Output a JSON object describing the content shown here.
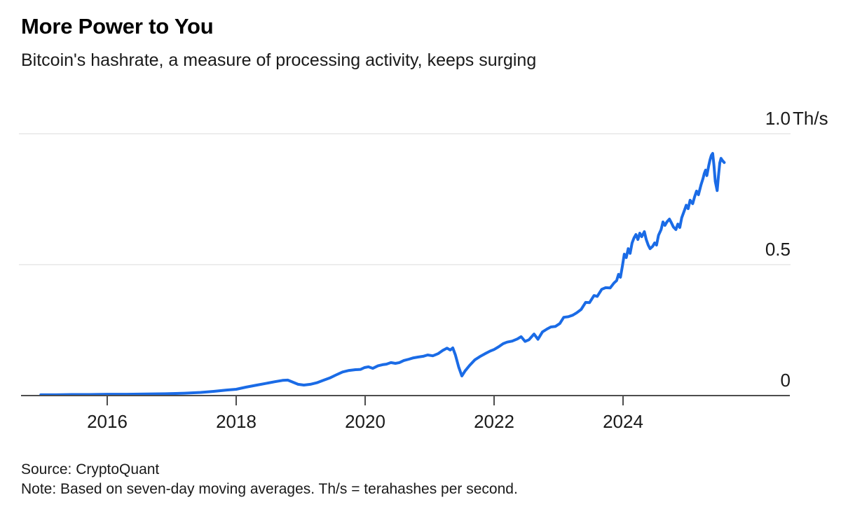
{
  "header": {
    "title": "More Power to You",
    "subtitle": "Bitcoin's hashrate, a measure of processing activity, keeps surging"
  },
  "footer": {
    "source": "Source: CryptoQuant",
    "note": "Note: Based on seven-day moving averages. Th/s = terahashes per second."
  },
  "colors": {
    "line": "#1a6be6",
    "grid": "#ededed",
    "axis": "#4d4d4d",
    "tick_text": "#1a1a1a",
    "background": "#ffffff"
  },
  "chart_data": {
    "type": "line",
    "title": "More Power to You",
    "subtitle": "Bitcoin's hashrate, a measure of processing activity, keeps surging",
    "series_name": "Bitcoin hashrate, seven-day moving average",
    "unit": "Th/s",
    "xlabel": "",
    "ylabel": "Th/s",
    "xlim": [
      2014.66,
      2026.6
    ],
    "ylim": [
      0,
      1.0
    ],
    "grid": "horizontal",
    "legend": "none",
    "ytick_side": "right",
    "xticks": [
      2016,
      2018,
      2020,
      2022,
      2024
    ],
    "yticks": [
      {
        "value": 0,
        "label": "0",
        "suffix": ""
      },
      {
        "value": 0.5,
        "label": "0.5",
        "suffix": ""
      },
      {
        "value": 1.0,
        "label": "1.0",
        "suffix": "Th/s"
      }
    ],
    "points": [
      [
        2014.97,
        0.003
      ],
      [
        2015.2,
        0.003
      ],
      [
        2015.45,
        0.004
      ],
      [
        2015.7,
        0.004
      ],
      [
        2016.0,
        0.005
      ],
      [
        2016.3,
        0.005
      ],
      [
        2016.6,
        0.006
      ],
      [
        2016.9,
        0.007
      ],
      [
        2017.2,
        0.009
      ],
      [
        2017.45,
        0.012
      ],
      [
        2017.65,
        0.016
      ],
      [
        2017.85,
        0.021
      ],
      [
        2018.0,
        0.024
      ],
      [
        2018.15,
        0.032
      ],
      [
        2018.3,
        0.039
      ],
      [
        2018.45,
        0.046
      ],
      [
        2018.6,
        0.053
      ],
      [
        2018.72,
        0.058
      ],
      [
        2018.8,
        0.059
      ],
      [
        2018.88,
        0.051
      ],
      [
        2018.96,
        0.043
      ],
      [
        2019.05,
        0.04
      ],
      [
        2019.15,
        0.043
      ],
      [
        2019.25,
        0.049
      ],
      [
        2019.35,
        0.058
      ],
      [
        2019.45,
        0.067
      ],
      [
        2019.55,
        0.079
      ],
      [
        2019.65,
        0.09
      ],
      [
        2019.75,
        0.096
      ],
      [
        2019.85,
        0.099
      ],
      [
        2019.93,
        0.1
      ],
      [
        2019.99,
        0.107
      ],
      [
        2020.05,
        0.11
      ],
      [
        2020.12,
        0.104
      ],
      [
        2020.2,
        0.114
      ],
      [
        2020.27,
        0.118
      ],
      [
        2020.33,
        0.12
      ],
      [
        2020.4,
        0.126
      ],
      [
        2020.47,
        0.123
      ],
      [
        2020.53,
        0.126
      ],
      [
        2020.6,
        0.134
      ],
      [
        2020.68,
        0.139
      ],
      [
        2020.75,
        0.144
      ],
      [
        2020.82,
        0.147
      ],
      [
        2020.9,
        0.15
      ],
      [
        2020.97,
        0.155
      ],
      [
        2021.05,
        0.152
      ],
      [
        2021.13,
        0.16
      ],
      [
        2021.2,
        0.172
      ],
      [
        2021.27,
        0.181
      ],
      [
        2021.32,
        0.174
      ],
      [
        2021.36,
        0.182
      ],
      [
        2021.4,
        0.155
      ],
      [
        2021.45,
        0.11
      ],
      [
        2021.5,
        0.075
      ],
      [
        2021.55,
        0.094
      ],
      [
        2021.62,
        0.115
      ],
      [
        2021.7,
        0.136
      ],
      [
        2021.78,
        0.149
      ],
      [
        2021.86,
        0.16
      ],
      [
        2021.94,
        0.17
      ],
      [
        2022.0,
        0.176
      ],
      [
        2022.07,
        0.186
      ],
      [
        2022.14,
        0.198
      ],
      [
        2022.2,
        0.204
      ],
      [
        2022.28,
        0.208
      ],
      [
        2022.36,
        0.216
      ],
      [
        2022.42,
        0.225
      ],
      [
        2022.48,
        0.207
      ],
      [
        2022.54,
        0.213
      ],
      [
        2022.62,
        0.235
      ],
      [
        2022.68,
        0.215
      ],
      [
        2022.75,
        0.243
      ],
      [
        2022.82,
        0.254
      ],
      [
        2022.88,
        0.262
      ],
      [
        2022.95,
        0.264
      ],
      [
        2023.02,
        0.275
      ],
      [
        2023.08,
        0.299
      ],
      [
        2023.15,
        0.301
      ],
      [
        2023.22,
        0.307
      ],
      [
        2023.28,
        0.316
      ],
      [
        2023.35,
        0.329
      ],
      [
        2023.42,
        0.356
      ],
      [
        2023.48,
        0.355
      ],
      [
        2023.55,
        0.382
      ],
      [
        2023.6,
        0.379
      ],
      [
        2023.67,
        0.406
      ],
      [
        2023.73,
        0.412
      ],
      [
        2023.8,
        0.411
      ],
      [
        2023.86,
        0.43
      ],
      [
        2023.9,
        0.439
      ],
      [
        2023.93,
        0.463
      ],
      [
        2023.96,
        0.452
      ],
      [
        2023.99,
        0.495
      ],
      [
        2024.02,
        0.54
      ],
      [
        2024.05,
        0.527
      ],
      [
        2024.08,
        0.561
      ],
      [
        2024.11,
        0.543
      ],
      [
        2024.14,
        0.583
      ],
      [
        2024.17,
        0.602
      ],
      [
        2024.2,
        0.615
      ],
      [
        2024.23,
        0.596
      ],
      [
        2024.26,
        0.62
      ],
      [
        2024.29,
        0.607
      ],
      [
        2024.33,
        0.626
      ],
      [
        2024.36,
        0.596
      ],
      [
        2024.39,
        0.575
      ],
      [
        2024.42,
        0.561
      ],
      [
        2024.46,
        0.57
      ],
      [
        2024.49,
        0.583
      ],
      [
        2024.52,
        0.575
      ],
      [
        2024.55,
        0.612
      ],
      [
        2024.59,
        0.634
      ],
      [
        2024.62,
        0.663
      ],
      [
        2024.65,
        0.65
      ],
      [
        2024.68,
        0.663
      ],
      [
        2024.72,
        0.674
      ],
      [
        2024.75,
        0.66
      ],
      [
        2024.78,
        0.644
      ],
      [
        2024.82,
        0.634
      ],
      [
        2024.85,
        0.655
      ],
      [
        2024.88,
        0.642
      ],
      [
        2024.91,
        0.679
      ],
      [
        2024.95,
        0.706
      ],
      [
        2024.98,
        0.727
      ],
      [
        2025.01,
        0.714
      ],
      [
        2025.04,
        0.746
      ],
      [
        2025.08,
        0.733
      ],
      [
        2025.11,
        0.759
      ],
      [
        2025.14,
        0.781
      ],
      [
        2025.17,
        0.767
      ],
      [
        2025.21,
        0.805
      ],
      [
        2025.24,
        0.829
      ],
      [
        2025.26,
        0.848
      ],
      [
        2025.28,
        0.861
      ],
      [
        2025.3,
        0.84
      ],
      [
        2025.33,
        0.88
      ],
      [
        2025.35,
        0.901
      ],
      [
        2025.37,
        0.917
      ],
      [
        2025.39,
        0.925
      ],
      [
        2025.41,
        0.88
      ],
      [
        2025.43,
        0.818
      ],
      [
        2025.46,
        0.783
      ],
      [
        2025.48,
        0.84
      ],
      [
        2025.5,
        0.888
      ],
      [
        2025.52,
        0.906
      ],
      [
        2025.54,
        0.898
      ],
      [
        2025.57,
        0.89
      ]
    ]
  }
}
